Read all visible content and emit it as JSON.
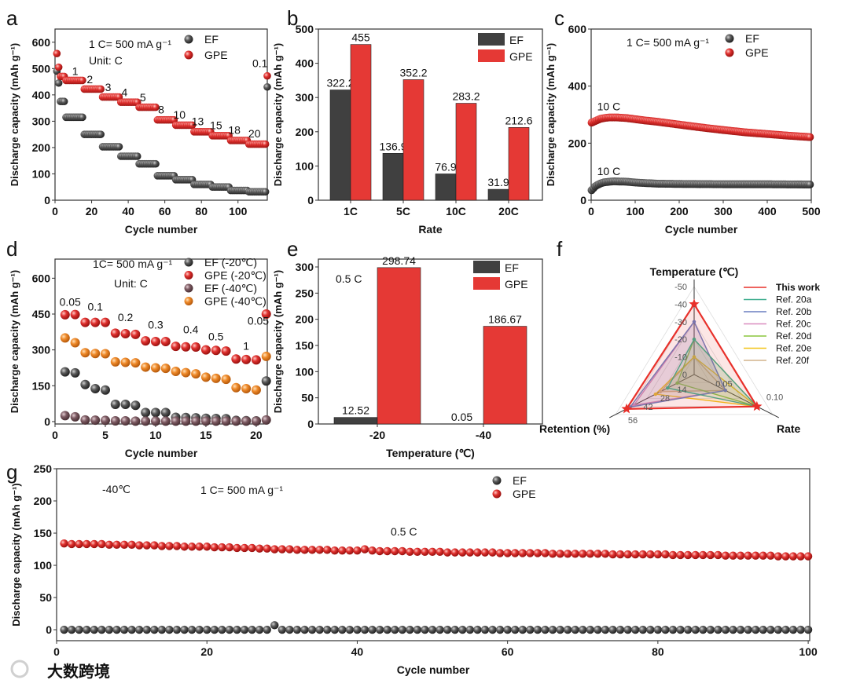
{
  "panel_letters": [
    "a",
    "b",
    "c",
    "d",
    "e",
    "f",
    "g"
  ],
  "watermark": "大数跨境",
  "colors": {
    "EF": "#4a4a4a",
    "GPE": "#e0312f",
    "EF40": "#7d5b63",
    "GPE40": "#ef8a2a",
    "bar_EF": "#404040",
    "bar_GPE": "#e53935"
  },
  "chart_data": [
    {
      "panel": "a",
      "type": "scatter",
      "xlabel": "Cycle number",
      "ylabel": "Discharge capacity (mAh g⁻¹)",
      "xlim": [
        0,
        116
      ],
      "ylim": [
        0,
        650
      ],
      "xticks": [
        0,
        20,
        40,
        60,
        80,
        100
      ],
      "yticks": [
        0,
        100,
        200,
        300,
        400,
        500,
        600
      ],
      "annotations": [
        "1 C= 500 mA g⁻¹",
        "Unit: C"
      ],
      "legend": [
        "EF",
        "GPE"
      ],
      "rate_labels": [
        {
          "text": "1",
          "x": 11,
          "y": 475
        },
        {
          "text": "2",
          "x": 19,
          "y": 445
        },
        {
          "text": "3",
          "x": 29,
          "y": 415
        },
        {
          "text": "4",
          "x": 38,
          "y": 395
        },
        {
          "text": "5",
          "x": 48,
          "y": 375
        },
        {
          "text": "8",
          "x": 58,
          "y": 330
        },
        {
          "text": "10",
          "x": 68,
          "y": 310
        },
        {
          "text": "13",
          "x": 78,
          "y": 285
        },
        {
          "text": "15",
          "x": 88,
          "y": 270
        },
        {
          "text": "18",
          "x": 98,
          "y": 252
        },
        {
          "text": "20",
          "x": 109,
          "y": 238
        },
        {
          "text": "0.1",
          "x": 112,
          "y": 505
        }
      ],
      "series": [
        {
          "name": "EF",
          "segments": [
            [
              1,
              1,
              490
            ],
            [
              2,
              2,
              445
            ],
            [
              3,
              5,
              375
            ],
            [
              6,
              15,
              315
            ],
            [
              16,
              25,
              250
            ],
            [
              26,
              35,
              203
            ],
            [
              36,
              45,
              167
            ],
            [
              46,
              55,
              138
            ],
            [
              56,
              65,
              93
            ],
            [
              66,
              75,
              78
            ],
            [
              76,
              85,
              60
            ],
            [
              86,
              95,
              50
            ],
            [
              96,
              105,
              37
            ],
            [
              106,
              115,
              32
            ],
            [
              116,
              116,
              430
            ]
          ]
        },
        {
          "name": "GPE",
          "segments": [
            [
              1,
              1,
              557
            ],
            [
              2,
              2,
              505
            ],
            [
              3,
              5,
              470
            ],
            [
              6,
              15,
              455
            ],
            [
              16,
              25,
              422
            ],
            [
              26,
              35,
              392
            ],
            [
              36,
              45,
              372
            ],
            [
              46,
              55,
              353
            ],
            [
              56,
              65,
              305
            ],
            [
              66,
              75,
              285
            ],
            [
              76,
              85,
              260
            ],
            [
              86,
              95,
              245
            ],
            [
              96,
              105,
              227
            ],
            [
              106,
              115,
              213
            ],
            [
              116,
              116,
              472
            ]
          ]
        }
      ]
    },
    {
      "panel": "b",
      "type": "bar",
      "xlabel": "Rate",
      "ylabel": "Discharge capacity (mAh g⁻¹)",
      "ylim": [
        0,
        500
      ],
      "yticks": [
        0,
        100,
        200,
        300,
        400,
        500
      ],
      "categories": [
        "1C",
        "5C",
        "10C",
        "20C"
      ],
      "legend": [
        "EF",
        "GPE"
      ],
      "series": [
        {
          "name": "EF",
          "values": [
            322.2,
            136.9,
            76.9,
            31.9
          ],
          "labels": [
            "322.2",
            "136.9",
            "76.9",
            "31.9"
          ]
        },
        {
          "name": "GPE",
          "values": [
            455,
            352.2,
            283.2,
            212.6
          ],
          "labels": [
            "455",
            "352.2",
            "283.2",
            "212.6"
          ]
        }
      ]
    },
    {
      "panel": "c",
      "type": "scatter",
      "xlabel": "Cycle number",
      "ylabel": "Discharge capacity (mAh g⁻¹)",
      "xlim": [
        0,
        500
      ],
      "ylim": [
        0,
        600
      ],
      "xticks": [
        0,
        100,
        200,
        300,
        400,
        500
      ],
      "yticks": [
        0,
        200,
        400,
        600
      ],
      "annotations": [
        "1 C= 500 mA g⁻¹"
      ],
      "legend": [
        "EF",
        "GPE"
      ],
      "rate_labels": [
        {
          "text": "10 C",
          "x": 40,
          "y": 315
        },
        {
          "text": "10 C",
          "x": 40,
          "y": 88
        }
      ],
      "series": [
        {
          "name": "EF",
          "x": [
            1,
            10,
            20,
            30,
            50,
            80,
            100,
            150,
            200,
            300,
            400,
            500
          ],
          "y": [
            35,
            50,
            58,
            63,
            66,
            65,
            62,
            58,
            57,
            56,
            56,
            55
          ]
        },
        {
          "name": "GPE",
          "x": [
            1,
            10,
            20,
            30,
            40,
            60,
            80,
            100,
            120,
            150,
            200,
            250,
            300,
            350,
            400,
            450,
            500
          ],
          "y": [
            272,
            278,
            285,
            288,
            290,
            290,
            288,
            284,
            280,
            275,
            265,
            255,
            246,
            238,
            232,
            226,
            221
          ]
        }
      ]
    },
    {
      "panel": "d",
      "type": "scatter",
      "xlabel": "Cycle number",
      "ylabel": "Discharge capacity (mAh g⁻¹)",
      "xlim": [
        0,
        21.1
      ],
      "ylim": [
        -10,
        680
      ],
      "xticks": [
        0,
        5,
        10,
        15,
        20
      ],
      "yticks": [
        0,
        150,
        300,
        450,
        600
      ],
      "annotations": [
        "1C= 500 mA g⁻¹",
        "Unit: C"
      ],
      "legend": [
        "EF (-20℃)",
        "GPE (-20℃)",
        "EF (-40℃)",
        "GPE (-40℃)"
      ],
      "rate_labels": [
        {
          "text": "0.05",
          "x": 1.5,
          "y": 485
        },
        {
          "text": "0.1",
          "x": 4,
          "y": 465
        },
        {
          "text": "0.2",
          "x": 7,
          "y": 420
        },
        {
          "text": "0.3",
          "x": 10,
          "y": 390
        },
        {
          "text": "0.4",
          "x": 13.5,
          "y": 370
        },
        {
          "text": "0.5",
          "x": 16,
          "y": 340
        },
        {
          "text": "1",
          "x": 19,
          "y": 300
        },
        {
          "text": "0.05",
          "x": 20.2,
          "y": 405
        }
      ],
      "series": [
        {
          "name": "EF (-20℃)",
          "y": [
            208,
            204,
            155,
            138,
            132,
            72,
            72,
            68,
            38,
            38,
            38,
            18,
            17,
            16,
            14,
            13,
            12,
            5,
            4,
            3,
            170
          ]
        },
        {
          "name": "GPE (-20℃)",
          "y": [
            447,
            448,
            415,
            415,
            415,
            370,
            368,
            365,
            338,
            335,
            335,
            315,
            313,
            312,
            300,
            298,
            295,
            262,
            260,
            258,
            450
          ]
        },
        {
          "name": "EF (-40℃)",
          "y": [
            25,
            20,
            7,
            6,
            5,
            3,
            3,
            2,
            2,
            2,
            2,
            2,
            2,
            2,
            2,
            2,
            2,
            2,
            2,
            2,
            7
          ]
        },
        {
          "name": "GPE (-40℃)",
          "y": [
            350,
            330,
            288,
            285,
            284,
            250,
            248,
            246,
            228,
            225,
            223,
            210,
            205,
            200,
            186,
            181,
            177,
            142,
            138,
            132,
            273
          ]
        }
      ]
    },
    {
      "panel": "e",
      "type": "bar",
      "xlabel": "Temperature (℃)",
      "ylabel": "Discharge capacity (mAh g⁻¹)",
      "ylim": [
        0,
        315
      ],
      "yticks": [
        0,
        50,
        100,
        150,
        200,
        250,
        300
      ],
      "categories": [
        "-20",
        "-40"
      ],
      "annotations": [
        "0.5 C"
      ],
      "legend": [
        "EF",
        "GPE"
      ],
      "series": [
        {
          "name": "EF",
          "values": [
            12.52,
            0.05
          ],
          "labels": [
            "12.52",
            "0.05"
          ]
        },
        {
          "name": "GPE",
          "values": [
            298.74,
            186.67
          ],
          "labels": [
            "298.74",
            "186.67"
          ]
        }
      ]
    },
    {
      "panel": "f",
      "type": "radar",
      "axes": [
        {
          "label": "Temperature (℃)",
          "max": 50,
          "ticks": [
            "0",
            "-10",
            "-20",
            "-30",
            "-40",
            "-50"
          ],
          "tick_values": [
            0,
            10,
            20,
            30,
            40,
            50
          ]
        },
        {
          "label": "Rate",
          "max": 0.125,
          "ticks": [
            "0.05",
            "0.10"
          ],
          "tick_values": [
            0.05,
            0.1
          ]
        },
        {
          "label": "Retention (%)",
          "max": 65,
          "ticks": [
            "14",
            "28",
            "42",
            "56"
          ],
          "tick_values": [
            14,
            28,
            42,
            56
          ]
        }
      ],
      "series": [
        {
          "name": "This work",
          "color": "#e8302a",
          "values": [
            40,
            0.1,
            56
          ]
        },
        {
          "name": "Ref. 20a",
          "color": "#3fae8f",
          "values": [
            20,
            0.1,
            22
          ]
        },
        {
          "name": "Ref. 20b",
          "color": "#6a7fc0",
          "values": [
            30,
            0.05,
            53
          ]
        },
        {
          "name": "Ref. 20c",
          "color": "#d98cbf",
          "values": [
            30,
            0.05,
            50
          ]
        },
        {
          "name": "Ref. 20d",
          "color": "#8cc63f",
          "values": [
            20,
            0.1,
            14
          ]
        },
        {
          "name": "Ref. 20e",
          "color": "#f2c417",
          "values": [
            10,
            0.1,
            32
          ]
        },
        {
          "name": "Ref. 20f",
          "color": "#d2b48c",
          "values": [
            10,
            0.05,
            28
          ]
        }
      ]
    },
    {
      "panel": "g",
      "type": "scatter",
      "xlabel": "Cycle number",
      "ylabel": "Discharge capacity (mAh g⁻¹)",
      "xlim": [
        0,
        100.2
      ],
      "ylim": [
        -17,
        250
      ],
      "xticks": [
        0,
        20,
        40,
        60,
        80,
        100
      ],
      "yticks": [
        0,
        50,
        100,
        150,
        200,
        250
      ],
      "annotations": [
        "-40℃",
        "1 C= 500 mA g⁻¹",
        "0.5 C"
      ],
      "legend": [
        "EF",
        "GPE"
      ],
      "series": [
        {
          "name": "EF",
          "y": [
            0,
            0,
            0,
            0,
            0,
            0,
            0,
            0,
            0,
            0,
            0,
            0,
            0,
            0,
            0,
            0,
            0,
            0,
            0,
            0,
            0,
            0,
            0,
            0,
            0,
            0,
            0,
            0,
            7,
            0,
            0,
            0,
            0,
            0,
            0,
            0,
            0,
            0,
            0,
            0,
            0,
            0,
            0,
            0,
            0,
            0,
            0,
            0,
            0,
            0,
            0,
            0,
            0,
            0,
            0,
            0,
            0,
            0,
            0,
            0,
            0,
            0,
            0,
            0,
            0,
            0,
            0,
            0,
            0,
            0,
            0,
            0,
            0,
            0,
            0,
            0,
            0,
            0,
            0,
            0,
            0,
            0,
            0,
            0,
            0,
            0,
            0,
            0,
            0,
            0,
            0,
            0,
            0,
            0,
            0,
            0,
            0,
            0,
            0,
            0
          ]
        },
        {
          "name": "GPE",
          "y": [
            134,
            133,
            133,
            133,
            133,
            133,
            132,
            132,
            132,
            132,
            131,
            131,
            131,
            130,
            130,
            130,
            129,
            129,
            129,
            129,
            128,
            128,
            128,
            127,
            127,
            127,
            126,
            126,
            125,
            125,
            125,
            124,
            124,
            124,
            124,
            124,
            123,
            123,
            123,
            123,
            125,
            123,
            122,
            122,
            122,
            122,
            121,
            121,
            121,
            121,
            121,
            120,
            120,
            120,
            120,
            120,
            120,
            120,
            119,
            119,
            119,
            119,
            119,
            119,
            119,
            118,
            118,
            118,
            118,
            118,
            118,
            118,
            118,
            117,
            117,
            117,
            117,
            117,
            117,
            117,
            117,
            116,
            116,
            116,
            116,
            116,
            116,
            116,
            115,
            115,
            115,
            115,
            115,
            115,
            115,
            114,
            114,
            114,
            114,
            114
          ]
        }
      ]
    }
  ]
}
